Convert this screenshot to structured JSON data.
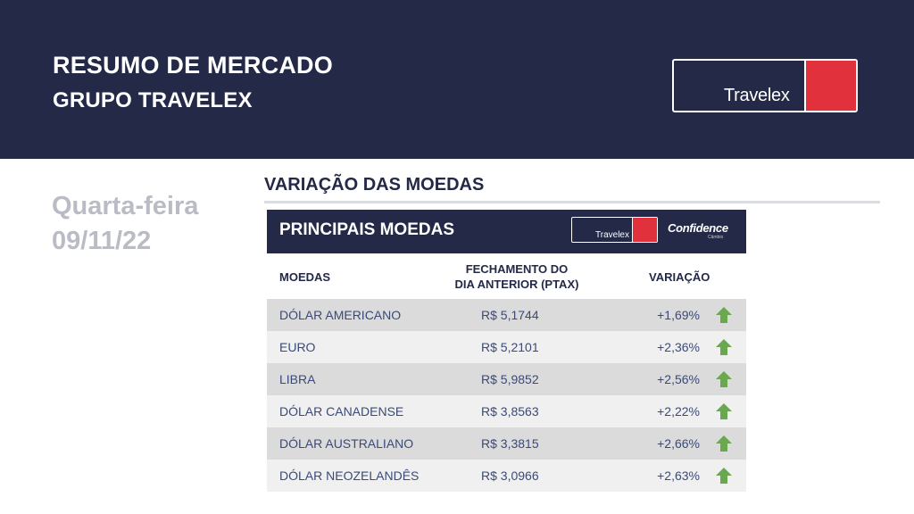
{
  "header": {
    "title": "RESUMO DE MERCADO",
    "subtitle": "GRUPO TRAVELEX",
    "logo_text": "Travelex"
  },
  "date_panel": {
    "weekday": "Quarta-feira",
    "date": "09/11/22"
  },
  "section": {
    "title": "VARIAÇÃO DAS MOEDAS"
  },
  "table": {
    "title": "PRINCIPAIS MOEDAS",
    "logo_text": "Travelex",
    "partner_logo": "Confidence",
    "partner_sub": "Câmbio",
    "columns": {
      "moedas": "MOEDAS",
      "fechamento_line1": "FECHAMENTO DO",
      "fechamento_line2": "DIA ANTERIOR (PTAX)",
      "variacao": "VARIAÇÃO"
    },
    "rows": [
      {
        "name": "DÓLAR AMERICANO",
        "ptax": "R$ 5,1744",
        "var": "+1,69%",
        "trend": "up-arrow-icon"
      },
      {
        "name": "EURO",
        "ptax": "R$ 5,2101",
        "var": "+2,36%",
        "trend": "up-arrow-icon"
      },
      {
        "name": "LIBRA",
        "ptax": "R$ 5,9852",
        "var": "+2,56%",
        "trend": "up-arrow-icon"
      },
      {
        "name": "DÓLAR CANADENSE",
        "ptax": "R$ 3,8563",
        "var": "+2,22%",
        "trend": "up-arrow-icon"
      },
      {
        "name": "DÓLAR AUSTRALIANO",
        "ptax": "R$ 3,3815",
        "var": "+2,66%",
        "trend": "up-arrow-icon"
      },
      {
        "name": "DÓLAR NEOZELANDÊS",
        "ptax": "R$ 3,0966",
        "var": "+2,63%",
        "trend": "up-arrow-icon"
      }
    ]
  },
  "colors": {
    "navy": "#232947",
    "brand_red": "#e0313d",
    "up_green": "#6aa84f",
    "muted_gray": "#b9bcc4"
  }
}
